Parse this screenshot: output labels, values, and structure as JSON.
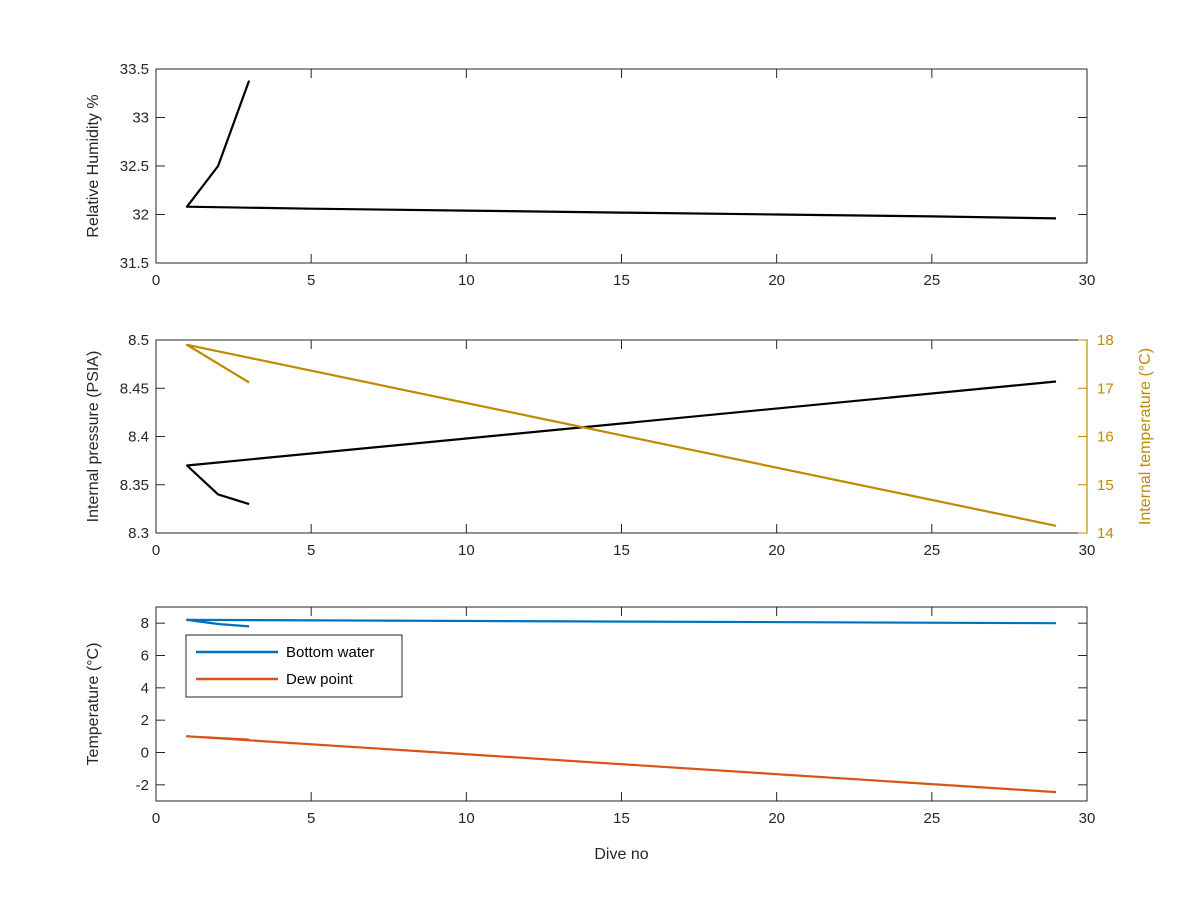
{
  "chart_data": [
    {
      "type": "line",
      "title": "",
      "xlabel": "",
      "ylabel": "Relative Humidity %",
      "xlim": [
        0,
        30
      ],
      "ylim": [
        31.5,
        33.5
      ],
      "xticks": [
        "0",
        "5",
        "10",
        "15",
        "20",
        "25",
        "30"
      ],
      "yticks": [
        "31.5",
        "32",
        "32.5",
        "33",
        "33.5"
      ],
      "grid": false,
      "series": [
        {
          "color": "#000000",
          "x": [
            3,
            2,
            1,
            5,
            10,
            15,
            20,
            25,
            29
          ],
          "y": [
            33.38,
            32.5,
            32.08,
            32.06,
            32.04,
            32.02,
            32.0,
            31.98,
            31.96
          ]
        }
      ]
    },
    {
      "type": "line",
      "title": "",
      "xlabel": "",
      "ylabel": "Internal pressure (PSIA)",
      "ylabel_right": "Internal temperature (°C)",
      "xlim": [
        0,
        30
      ],
      "ylim": [
        8.3,
        8.5
      ],
      "ylim_right": [
        14,
        18
      ],
      "xticks": [
        "0",
        "5",
        "10",
        "15",
        "20",
        "25",
        "30"
      ],
      "yticks": [
        "8.3",
        "8.35",
        "8.4",
        "8.45",
        "8.5"
      ],
      "yticks_right": [
        "14",
        "15",
        "16",
        "17",
        "18"
      ],
      "right_axis_color": "#C08A00",
      "grid": false,
      "series": [
        {
          "axis": "left",
          "color": "#000000",
          "x": [
            3,
            2,
            1,
            29
          ],
          "y": [
            8.33,
            8.34,
            8.37,
            8.457
          ]
        },
        {
          "axis": "right",
          "color": "#C08A00",
          "x": [
            3,
            1,
            29
          ],
          "y": [
            17.12,
            17.9,
            14.15
          ]
        }
      ]
    },
    {
      "type": "line",
      "title": "",
      "xlabel": "Dive no",
      "ylabel": "Temperature (°C)",
      "xlim": [
        0,
        30
      ],
      "ylim": [
        -3,
        9
      ],
      "xticks": [
        "0",
        "5",
        "10",
        "15",
        "20",
        "25",
        "30"
      ],
      "yticks": [
        "-2",
        "0",
        "2",
        "4",
        "6",
        "8"
      ],
      "grid": false,
      "legend_position": "top-left",
      "series": [
        {
          "name": "Bottom water",
          "color": "#0072BD",
          "x": [
            3,
            2,
            1,
            29
          ],
          "y": [
            7.8,
            7.95,
            8.2,
            8.0
          ]
        },
        {
          "name": "Dew point",
          "color": "#D95319",
          "x": [
            3,
            1,
            29
          ],
          "y": [
            0.8,
            1.0,
            -2.45
          ]
        }
      ]
    }
  ]
}
